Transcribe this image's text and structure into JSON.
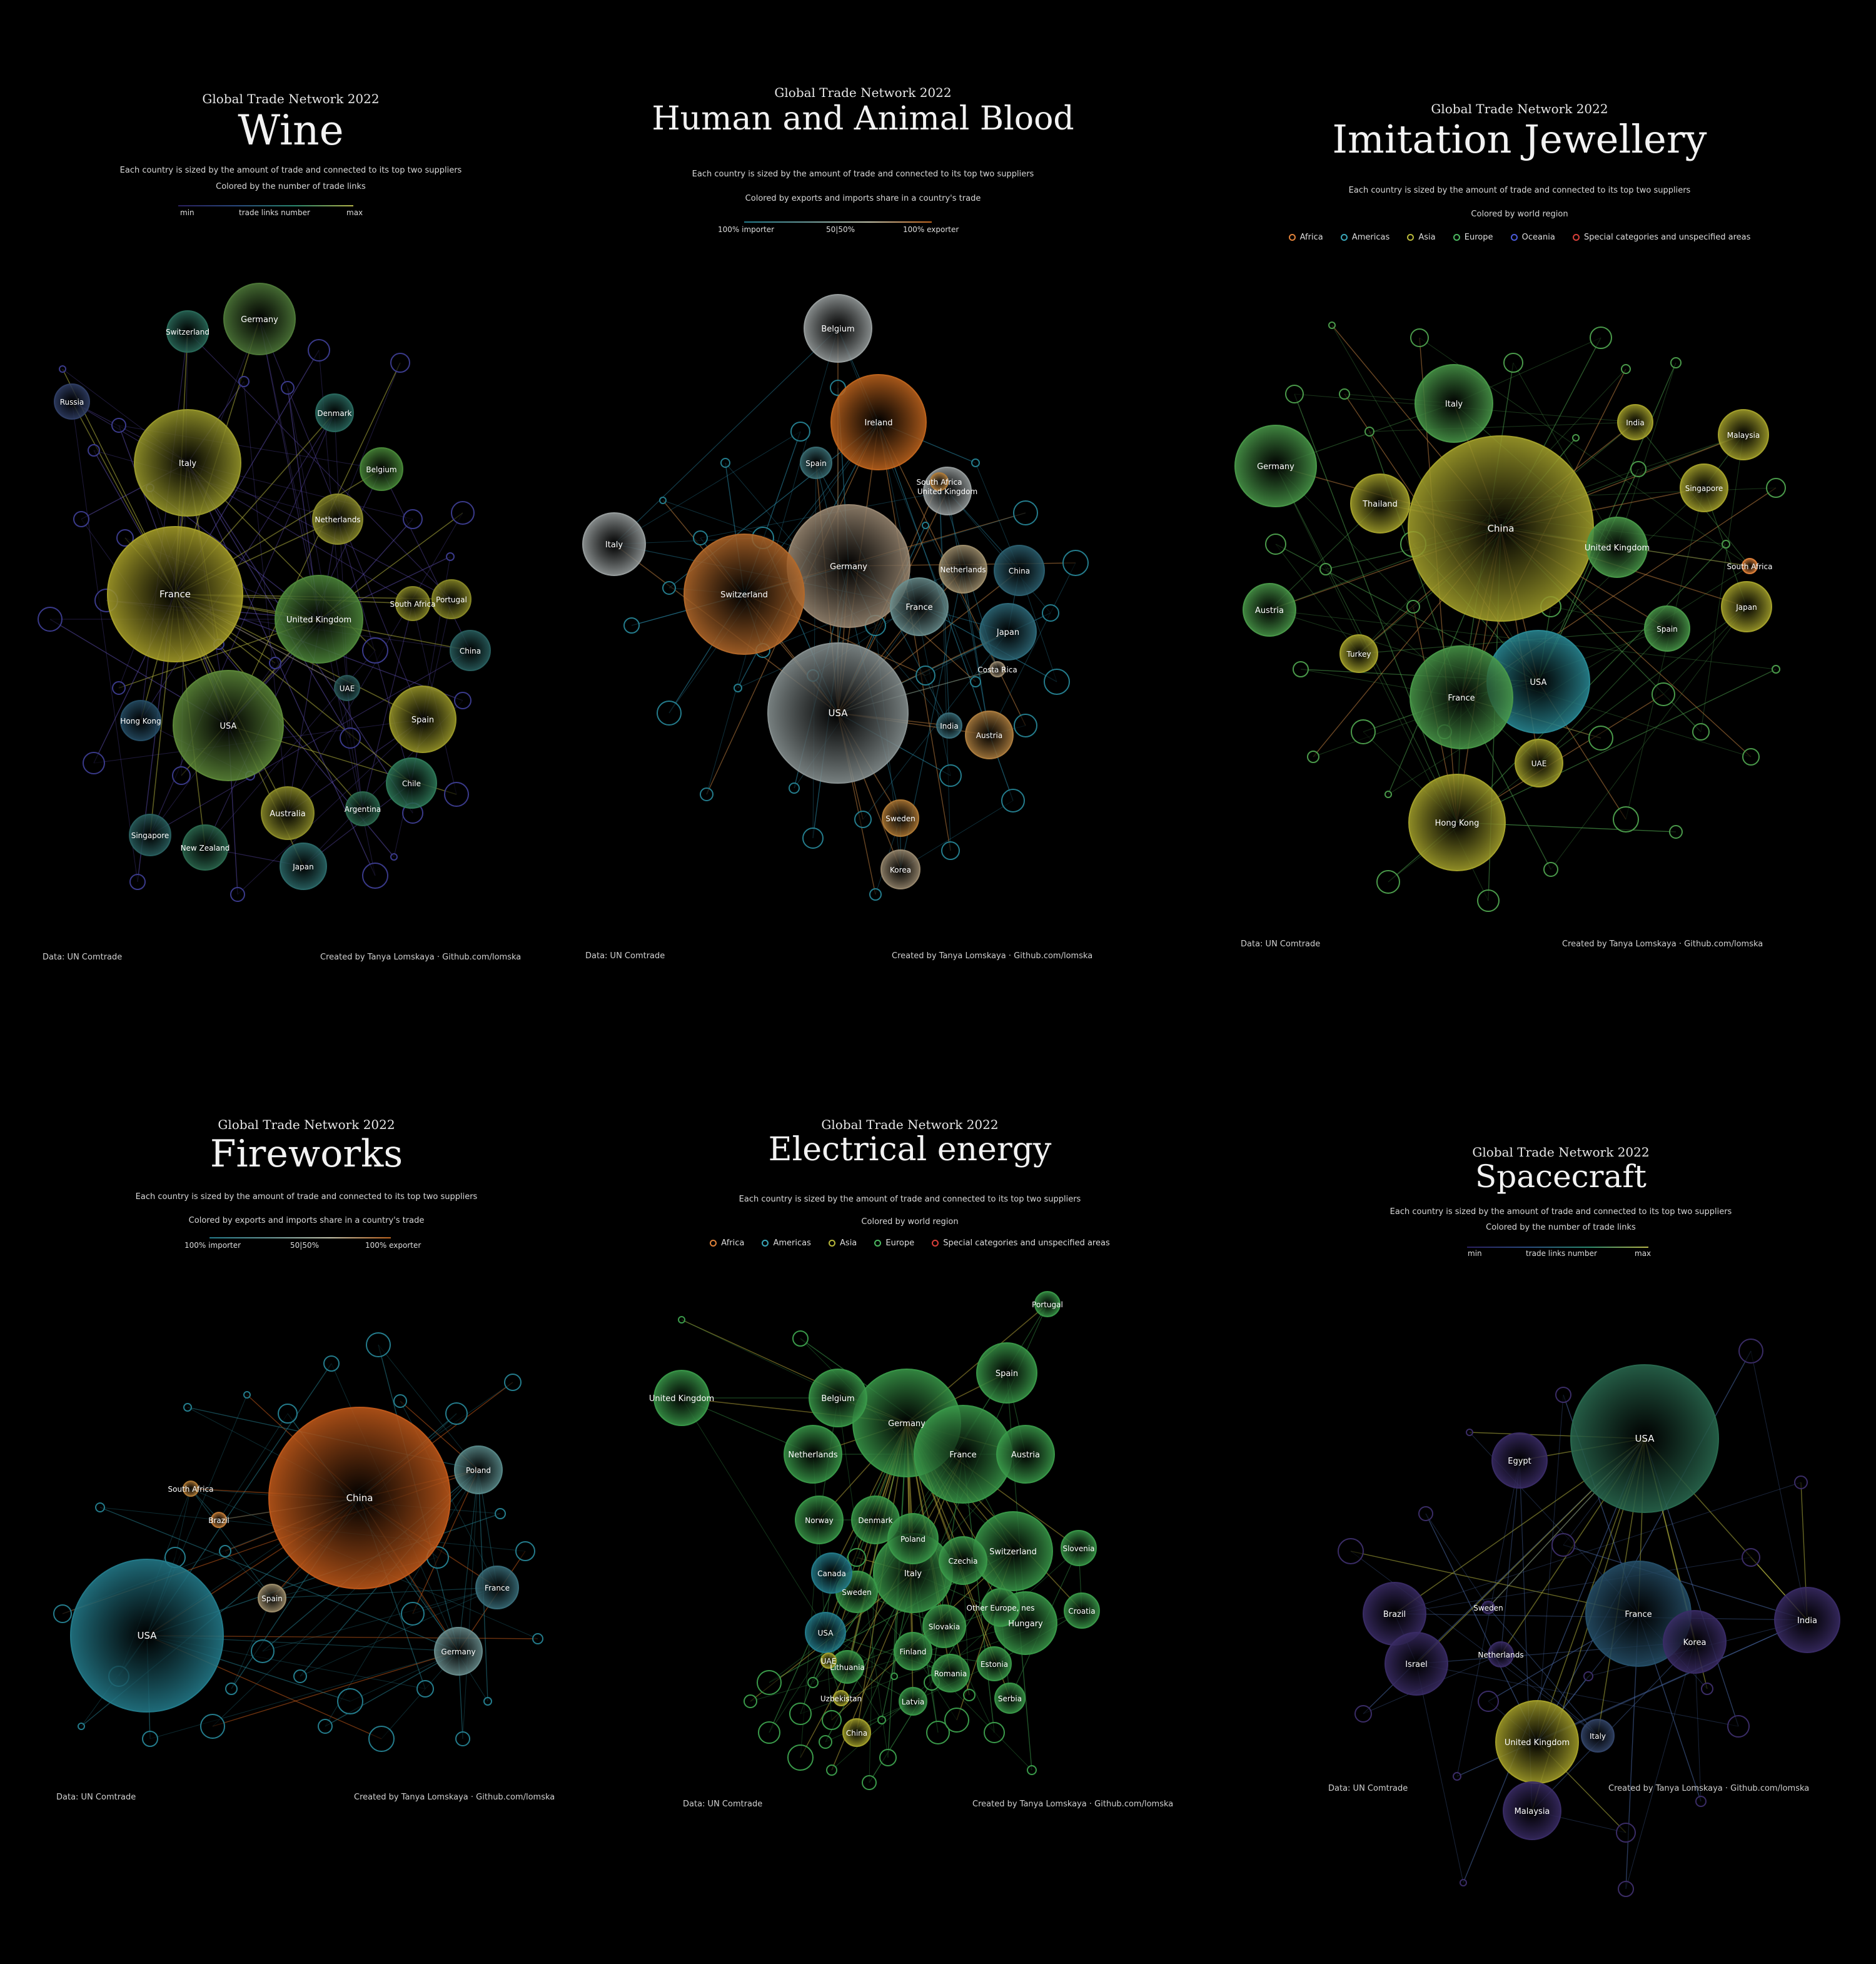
{
  "common": {
    "kicker": "Global Trade Network 2022",
    "subtitle": "Each country is sized by the amount of trade and connected to its top two suppliers",
    "source": "Data: UN Comtrade",
    "credit": "Created by Tanya Lomskaya · Github.com/lomska"
  },
  "legends": {
    "links": {
      "caption": "Colored by the number of trade links",
      "min": "min",
      "mid": "trade links number",
      "max": "max"
    },
    "share": {
      "caption": "Colored by exports and imports share in a country's trade",
      "left": "100% importer",
      "mid": "50|50%",
      "right": "100% exporter"
    },
    "region": {
      "caption": "Colored by world region",
      "items": [
        {
          "label": "Africa",
          "color": "#e0823a"
        },
        {
          "label": "Americas",
          "color": "#3aa6b8"
        },
        {
          "label": "Asia",
          "color": "#b8b83a"
        },
        {
          "label": "Europe",
          "color": "#4cb860"
        },
        {
          "label": "Oceania",
          "color": "#4a5ad8"
        },
        {
          "label": "Special categories and unspecified areas",
          "color": "#d8403a"
        }
      ]
    },
    "region_short": {
      "items": [
        {
          "label": "Africa",
          "color": "#e0823a"
        },
        {
          "label": "Americas",
          "color": "#3aa6b8"
        },
        {
          "label": "Asia",
          "color": "#b8b83a"
        },
        {
          "label": "Europe",
          "color": "#4cb860"
        },
        {
          "label": "Special categories and unspecified areas",
          "color": "#d8403a"
        }
      ]
    }
  },
  "panels": [
    {
      "title": "Wine",
      "color_scheme": "links",
      "nodes": [
        {
          "label": "France",
          "r": 108,
          "color": "#a9a12a"
        },
        {
          "label": "Italy",
          "r": 85,
          "color": "#9c9c2c"
        },
        {
          "label": "USA",
          "r": 88,
          "color": "#5e8a3a"
        },
        {
          "label": "United Kingdom",
          "r": 70,
          "color": "#4f8a3c"
        },
        {
          "label": "Germany",
          "r": 57,
          "color": "#4f7a3a"
        },
        {
          "label": "Spain",
          "r": 53,
          "color": "#9c9a2a"
        },
        {
          "label": "Australia",
          "r": 42,
          "color": "#8f8f2a"
        },
        {
          "label": "Netherlands",
          "r": 40,
          "color": "#8c8c2c"
        },
        {
          "label": "Chile",
          "r": 40,
          "color": "#2f7a5a"
        },
        {
          "label": "Japan",
          "r": 37,
          "color": "#2c6a6a"
        },
        {
          "label": "New Zealand",
          "r": 36,
          "color": "#2c6a50"
        },
        {
          "label": "Belgium",
          "r": 34,
          "color": "#4a8a3a"
        },
        {
          "label": "China",
          "r": 32,
          "color": "#2a6060"
        },
        {
          "label": "Singapore",
          "r": 33,
          "color": "#2a6060"
        },
        {
          "label": "Denmark",
          "r": 30,
          "color": "#2a6a60"
        },
        {
          "label": "Hong Kong",
          "r": 32,
          "color": "#264e66"
        },
        {
          "label": "Switzerland",
          "r": 33,
          "color": "#2a6a5a"
        },
        {
          "label": "Portugal",
          "r": 31,
          "color": "#8a8a28"
        },
        {
          "label": "Russia",
          "r": 28,
          "color": "#303f66"
        },
        {
          "label": "South Africa",
          "r": 27,
          "color": "#8a8a28"
        },
        {
          "label": "Argentina",
          "r": 27,
          "color": "#2c6a50"
        },
        {
          "label": "UAE",
          "r": 20,
          "color": "#2a5a5a"
        }
      ]
    },
    {
      "title": "Human and Animal Blood",
      "color_scheme": "share",
      "nodes": [
        {
          "label": "USA",
          "r": 112,
          "color": "#8a9494"
        },
        {
          "label": "Germany",
          "r": 98,
          "color": "#9c8a74"
        },
        {
          "label": "Switzerland",
          "r": 96,
          "color": "#b4692a"
        },
        {
          "label": "Ireland",
          "r": 76,
          "color": "#c0651e"
        },
        {
          "label": "Belgium",
          "r": 54,
          "color": "#9aa0a0"
        },
        {
          "label": "Italy",
          "r": 50,
          "color": "#9aa0a0"
        },
        {
          "label": "France",
          "r": 46,
          "color": "#6a8e8e"
        },
        {
          "label": "Japan",
          "r": 45,
          "color": "#2e6a7a"
        },
        {
          "label": "China",
          "r": 40,
          "color": "#2c6070"
        },
        {
          "label": "United Kingdom",
          "r": 38,
          "color": "#9aa0a0"
        },
        {
          "label": "Austria",
          "r": 38,
          "color": "#b08040"
        },
        {
          "label": "Netherlands",
          "r": 38,
          "color": "#a0906e"
        },
        {
          "label": "Korea",
          "r": 31,
          "color": "#9a8a70"
        },
        {
          "label": "Sweden",
          "r": 29,
          "color": "#b07a36"
        },
        {
          "label": "Spain",
          "r": 25,
          "color": "#3a6e74"
        },
        {
          "label": "India",
          "r": 20,
          "color": "#3a6e7a"
        },
        {
          "label": "South Africa",
          "r": 14,
          "color": "#b07a36"
        },
        {
          "label": "Costa Rica",
          "r": 12,
          "color": "#9a8a70"
        }
      ]
    },
    {
      "title": "Imitation Jewellery",
      "color_scheme": "region",
      "nodes": [
        {
          "label": "China",
          "r": 148,
          "color": "#a6a32c"
        },
        {
          "label": "USA",
          "r": 82,
          "color": "#2a8a96"
        },
        {
          "label": "France",
          "r": 82,
          "color": "#4a9a4a"
        },
        {
          "label": "Hong Kong",
          "r": 77,
          "color": "#a6a32c"
        },
        {
          "label": "Germany",
          "r": 65,
          "color": "#4a9a4a"
        },
        {
          "label": "Italy",
          "r": 62,
          "color": "#4a9a4a"
        },
        {
          "label": "United Kingdom",
          "r": 48,
          "color": "#4a9a4a"
        },
        {
          "label": "Thailand",
          "r": 47,
          "color": "#a6a32c"
        },
        {
          "label": "Austria",
          "r": 42,
          "color": "#4a9a4a"
        },
        {
          "label": "Malaysia",
          "r": 40,
          "color": "#a6a32c"
        },
        {
          "label": "Singapore",
          "r": 38,
          "color": "#a6a32c"
        },
        {
          "label": "Japan",
          "r": 40,
          "color": "#a6a32c"
        },
        {
          "label": "UAE",
          "r": 38,
          "color": "#a6a32c"
        },
        {
          "label": "Spain",
          "r": 36,
          "color": "#4a9a4a"
        },
        {
          "label": "Turkey",
          "r": 30,
          "color": "#a6a32c"
        },
        {
          "label": "India",
          "r": 28,
          "color": "#a6a32c"
        },
        {
          "label": "South Africa",
          "r": 12,
          "color": "#e0823a"
        }
      ]
    },
    {
      "title": "Fireworks",
      "color_scheme": "share",
      "nodes": [
        {
          "label": "China",
          "r": 145,
          "color": "#c25a1a"
        },
        {
          "label": "USA",
          "r": 122,
          "color": "#247c8c"
        },
        {
          "label": "Germany",
          "r": 38,
          "color": "#6a8e8e"
        },
        {
          "label": "Poland",
          "r": 38,
          "color": "#5a8a8a"
        },
        {
          "label": "France",
          "r": 34,
          "color": "#3a6e7a"
        },
        {
          "label": "Spain",
          "r": 22,
          "color": "#a0906e"
        },
        {
          "label": "South Africa",
          "r": 12,
          "color": "#b07a36"
        },
        {
          "label": "Brazil",
          "r": 12,
          "color": "#c07a36"
        }
      ]
    },
    {
      "title": "Electrical energy",
      "color_scheme": "region_short",
      "nodes": [
        {
          "label": "Germany",
          "r": 86,
          "color": "#3a9a4a"
        },
        {
          "label": "France",
          "r": 78,
          "color": "#3a9a4a"
        },
        {
          "label": "Switzerland",
          "r": 63,
          "color": "#3a9a4a"
        },
        {
          "label": "Italy",
          "r": 63,
          "color": "#3a9a4a"
        },
        {
          "label": "Hungary",
          "r": 50,
          "color": "#3a9a4a"
        },
        {
          "label": "Spain",
          "r": 48,
          "color": "#3a9a4a"
        },
        {
          "label": "Austria",
          "r": 46,
          "color": "#3a9a4a"
        },
        {
          "label": "Netherlands",
          "r": 46,
          "color": "#3a9a4a"
        },
        {
          "label": "United Kingdom",
          "r": 44,
          "color": "#3a9a4a"
        },
        {
          "label": "Belgium",
          "r": 46,
          "color": "#3a9a4a"
        },
        {
          "label": "Norway",
          "r": 38,
          "color": "#3a9a4a"
        },
        {
          "label": "Denmark",
          "r": 38,
          "color": "#3a9a4a"
        },
        {
          "label": "Poland",
          "r": 40,
          "color": "#3a9a4a"
        },
        {
          "label": "Czechia",
          "r": 38,
          "color": "#3a9a4a"
        },
        {
          "label": "Slovakia",
          "r": 34,
          "color": "#3a9a4a"
        },
        {
          "label": "Sweden",
          "r": 33,
          "color": "#3a9a4a"
        },
        {
          "label": "Canada",
          "r": 32,
          "color": "#247c8c"
        },
        {
          "label": "USA",
          "r": 32,
          "color": "#247c8c"
        },
        {
          "label": "Romania",
          "r": 30,
          "color": "#3a9a4a"
        },
        {
          "label": "Finland",
          "r": 30,
          "color": "#3a9a4a"
        },
        {
          "label": "Estonia",
          "r": 27,
          "color": "#3a9a4a"
        },
        {
          "label": "Croatia",
          "r": 28,
          "color": "#3a9a4a"
        },
        {
          "label": "Slovenia",
          "r": 28,
          "color": "#3a9a4a"
        },
        {
          "label": "Serbia",
          "r": 24,
          "color": "#3a9a4a"
        },
        {
          "label": "Other Europe, nes",
          "r": 30,
          "color": "#3a9a4a"
        },
        {
          "label": "Lithuania",
          "r": 26,
          "color": "#3a9a4a"
        },
        {
          "label": "Latvia",
          "r": 22,
          "color": "#3a9a4a"
        },
        {
          "label": "China",
          "r": 22,
          "color": "#a6a32c"
        },
        {
          "label": "Portugal",
          "r": 20,
          "color": "#3a9a4a"
        },
        {
          "label": "UAE",
          "r": 12,
          "color": "#a6a32c"
        },
        {
          "label": "Uzbekistan",
          "r": 12,
          "color": "#a6a32c"
        }
      ]
    },
    {
      "title": "Spacecraft",
      "color_scheme": "links",
      "nodes": [
        {
          "label": "USA",
          "r": 118,
          "color": "#2a6a50"
        },
        {
          "label": "France",
          "r": 84,
          "color": "#26506a"
        },
        {
          "label": "United Kingdom",
          "r": 66,
          "color": "#a6a12a"
        },
        {
          "label": "India",
          "r": 52,
          "color": "#3a2c66"
        },
        {
          "label": "Brazil",
          "r": 50,
          "color": "#3a2c66"
        },
        {
          "label": "Israel",
          "r": 50,
          "color": "#3a2c66"
        },
        {
          "label": "Korea",
          "r": 50,
          "color": "#3a2c66"
        },
        {
          "label": "Malaysia",
          "r": 46,
          "color": "#3a2c66"
        },
        {
          "label": "Egypt",
          "r": 44,
          "color": "#3a2c66"
        },
        {
          "label": "Netherlands",
          "r": 20,
          "color": "#3a2c66"
        },
        {
          "label": "Italy",
          "r": 26,
          "color": "#34466a"
        },
        {
          "label": "Sweden",
          "r": 10,
          "color": "#3a2c66"
        }
      ]
    }
  ]
}
